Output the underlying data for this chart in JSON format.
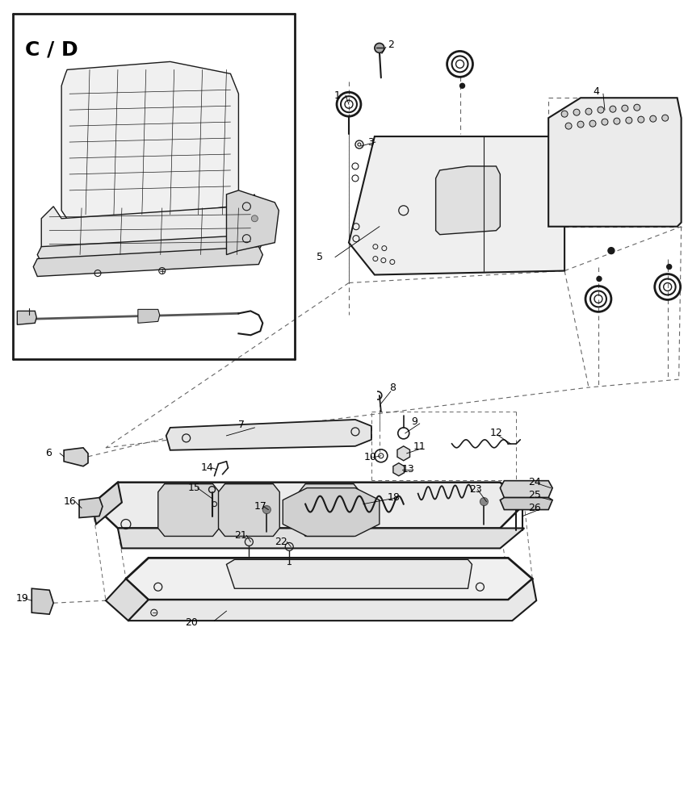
{
  "bg_color": "#ffffff",
  "lc": "#1a1a1a",
  "dc": "#666666",
  "figsize": [
    8.52,
    10.0
  ],
  "dpi": 100
}
